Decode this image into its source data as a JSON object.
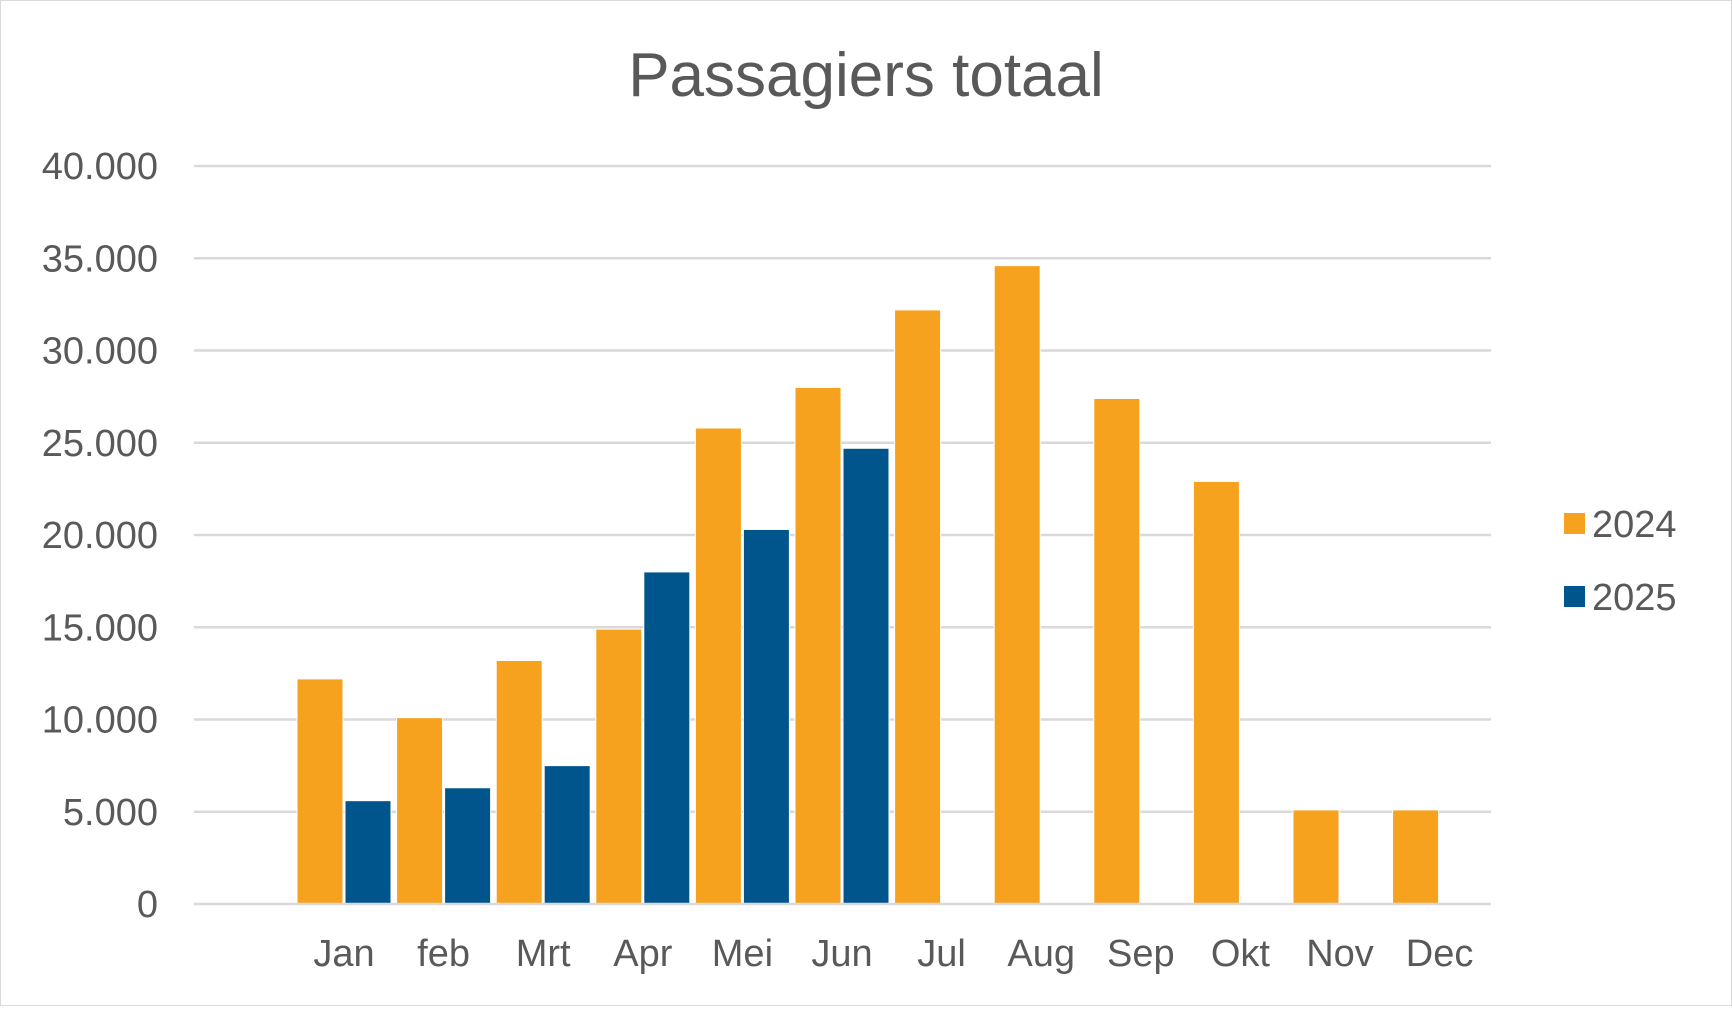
{
  "chart_data": {
    "type": "bar",
    "title": "Passagiers totaal",
    "xlabel": "",
    "ylabel": "",
    "categories": [
      "Jan",
      "feb",
      "Mrt",
      "Apr",
      "Mei",
      "Jun",
      "Jul",
      "Aug",
      "Sep",
      "Okt",
      "Nov",
      "Dec"
    ],
    "series": [
      {
        "name": "2024",
        "color": "#F7A21E",
        "values": [
          12200,
          10100,
          13200,
          14900,
          25800,
          28000,
          32200,
          34600,
          27400,
          22900,
          5100,
          5100
        ]
      },
      {
        "name": "2025",
        "color": "#00558C",
        "values": [
          5600,
          6300,
          7500,
          18000,
          20300,
          24700,
          null,
          null,
          null,
          null,
          null,
          null
        ]
      }
    ],
    "ylim": [
      0,
      40000
    ],
    "yticks": [
      0,
      5000,
      10000,
      15000,
      20000,
      25000,
      30000,
      35000,
      40000
    ],
    "ytick_labels": [
      "0",
      "5.000",
      "10.000",
      "15.000",
      "20.000",
      "25.000",
      "30.000",
      "35.000",
      "40.000"
    ],
    "grid": true,
    "legend_position": "right"
  }
}
